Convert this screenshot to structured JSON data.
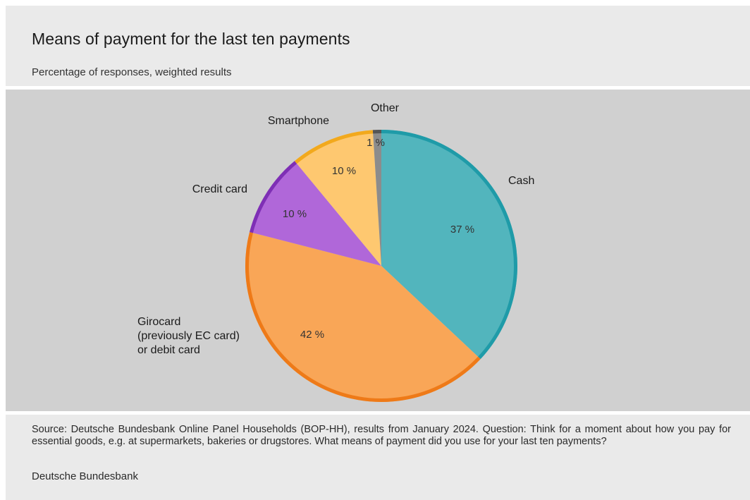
{
  "title": "Means of payment for the last ten payments",
  "subtitle": "Percentage of responses, weighted results",
  "source": "Source: Deutsche Bundesbank Online Panel Households (BOP-HH), results from January 2024. Question: Think for a moment about how you pay for essential goods, e.g. at supermarkets, bakeries or drugstores. What means of payment did you use for your last ten payments?",
  "publisher": "Deutsche Bundesbank",
  "chart_data": {
    "type": "pie",
    "title": "Means of payment for the last ten payments",
    "subtitle": "Percentage of responses, weighted results",
    "unit": "%",
    "start": "top, clockwise",
    "slices": [
      {
        "key": "cash",
        "label": [
          "Cash"
        ],
        "value": 37,
        "value_label": "37 %",
        "fill": "#52b5bd",
        "stroke": "#1f9ba8"
      },
      {
        "key": "girocard",
        "label": [
          "Girocard",
          "(previously EC card)",
          "or debit card"
        ],
        "value": 42,
        "value_label": "42 %",
        "fill": "#f9a657",
        "stroke": "#ee7a18"
      },
      {
        "key": "credit",
        "label": [
          "Credit card"
        ],
        "value": 10,
        "value_label": "10 %",
        "fill": "#b067d9",
        "stroke": "#7e2fb5"
      },
      {
        "key": "smartphone",
        "label": [
          "Smartphone"
        ],
        "value": 10,
        "value_label": "10 %",
        "fill": "#fec870",
        "stroke": "#f2a91d"
      },
      {
        "key": "other",
        "label": [
          "Other"
        ],
        "value": 1,
        "value_label": "1 %",
        "fill": "#8c8c8c",
        "stroke": "#555555"
      }
    ]
  }
}
